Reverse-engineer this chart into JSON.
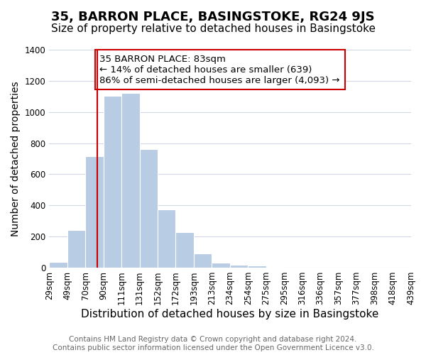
{
  "title": "35, BARRON PLACE, BASINGSTOKE, RG24 9JS",
  "subtitle": "Size of property relative to detached houses in Basingstoke",
  "xlabel": "Distribution of detached houses by size in Basingstoke",
  "ylabel": "Number of detached properties",
  "footer_line1": "Contains HM Land Registry data © Crown copyright and database right 2024.",
  "footer_line2": "Contains public sector information licensed under the Open Government Licence v3.0.",
  "tick_labels": [
    "29sqm",
    "49sqm",
    "70sqm",
    "90sqm",
    "111sqm",
    "131sqm",
    "152sqm",
    "172sqm",
    "193sqm",
    "213sqm",
    "234sqm",
    "254sqm",
    "275sqm",
    "295sqm",
    "316sqm",
    "336sqm",
    "357sqm",
    "377sqm",
    "398sqm",
    "418sqm",
    "439sqm"
  ],
  "bar_values": [
    35,
    240,
    715,
    1105,
    1120,
    760,
    375,
    230,
    90,
    30,
    20,
    15,
    5,
    0,
    0,
    0,
    0,
    0,
    0,
    0
  ],
  "bar_color": "#b8cce4",
  "bar_edge_color": "#ffffff",
  "property_line_color": "#cc0000",
  "property_sqm": 83,
  "bin_boundaries": [
    29,
    49,
    70,
    90,
    111,
    131,
    152,
    172,
    193,
    213,
    234,
    254,
    275,
    295,
    316,
    336,
    357,
    377,
    398,
    418,
    439
  ],
  "annotation_text": "35 BARRON PLACE: 83sqm\n← 14% of detached houses are smaller (639)\n86% of semi-detached houses are larger (4,093) →",
  "annotation_box_color": "#ffffff",
  "annotation_box_edge": "#cc0000",
  "ylim": [
    0,
    1400
  ],
  "yticks": [
    0,
    200,
    400,
    600,
    800,
    1000,
    1200,
    1400
  ],
  "background_color": "#ffffff",
  "grid_color": "#d0d8e8",
  "title_fontsize": 13,
  "subtitle_fontsize": 11,
  "xlabel_fontsize": 11,
  "ylabel_fontsize": 10,
  "tick_fontsize": 8.5,
  "annotation_fontsize": 9.5,
  "footer_fontsize": 7.5
}
